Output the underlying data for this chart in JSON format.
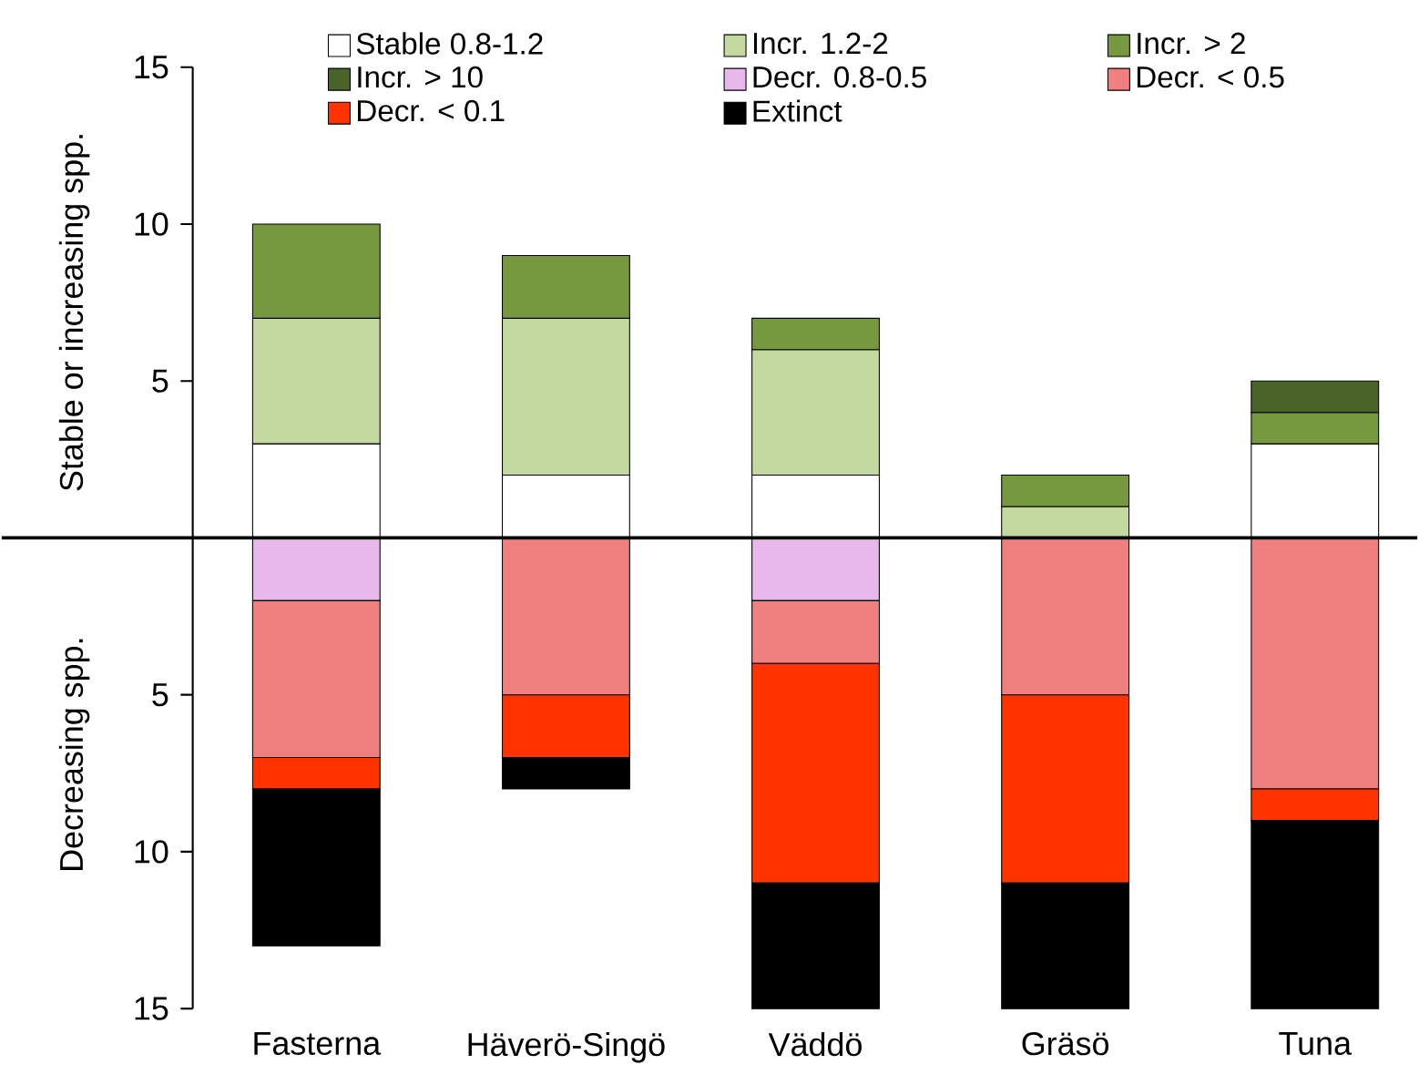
{
  "chart_data": {
    "type": "bar",
    "stacked": true,
    "ylabel": "Stable or increasing spp.",
    "annotations": [
      "Decreasing spp."
    ],
    "categories": [
      "Fasterna",
      "Häverö-Singö",
      "Väddö",
      "Gräsö",
      "Tuna"
    ],
    "series": [
      {
        "name": "Stable 0.8-1.2",
        "color": "#ffffff",
        "values": [
          3,
          2,
          2,
          0,
          3
        ]
      },
      {
        "name": "Incr. 1.2-2",
        "color": "#c4d9a0",
        "values": [
          4,
          5,
          4,
          1,
          0
        ]
      },
      {
        "name": "Incr. > 2",
        "color": "#76983f",
        "values": [
          3,
          2,
          1,
          1,
          1
        ]
      },
      {
        "name": "Incr. > 10",
        "color": "#4a6428",
        "values": [
          0,
          0,
          0,
          0,
          1
        ]
      },
      {
        "name": "Decr. 0.8-0.5",
        "color": "#e8b8ec",
        "values": [
          -2,
          0,
          -2,
          0,
          0
        ]
      },
      {
        "name": "Decr. < 0.5",
        "color": "#f08080",
        "values": [
          -5,
          -5,
          -2,
          -5,
          -8
        ]
      },
      {
        "name": "Decr. < 0.1",
        "color": "#ff3300",
        "values": [
          -1,
          -2,
          -7,
          -6,
          -1
        ]
      },
      {
        "name": "Extinct",
        "color": "#000000",
        "values": [
          -5,
          -1,
          -4,
          -4,
          -6
        ]
      }
    ],
    "ylim": [
      -15,
      15
    ],
    "yticks": [
      {
        "value": -15,
        "label": "15"
      },
      {
        "value": -10,
        "label": "10"
      },
      {
        "value": -5,
        "label": "5"
      },
      5,
      10,
      15
    ],
    "ref_lines": [
      {
        "axis": "y",
        "value": 0
      }
    ],
    "legend": "top"
  }
}
